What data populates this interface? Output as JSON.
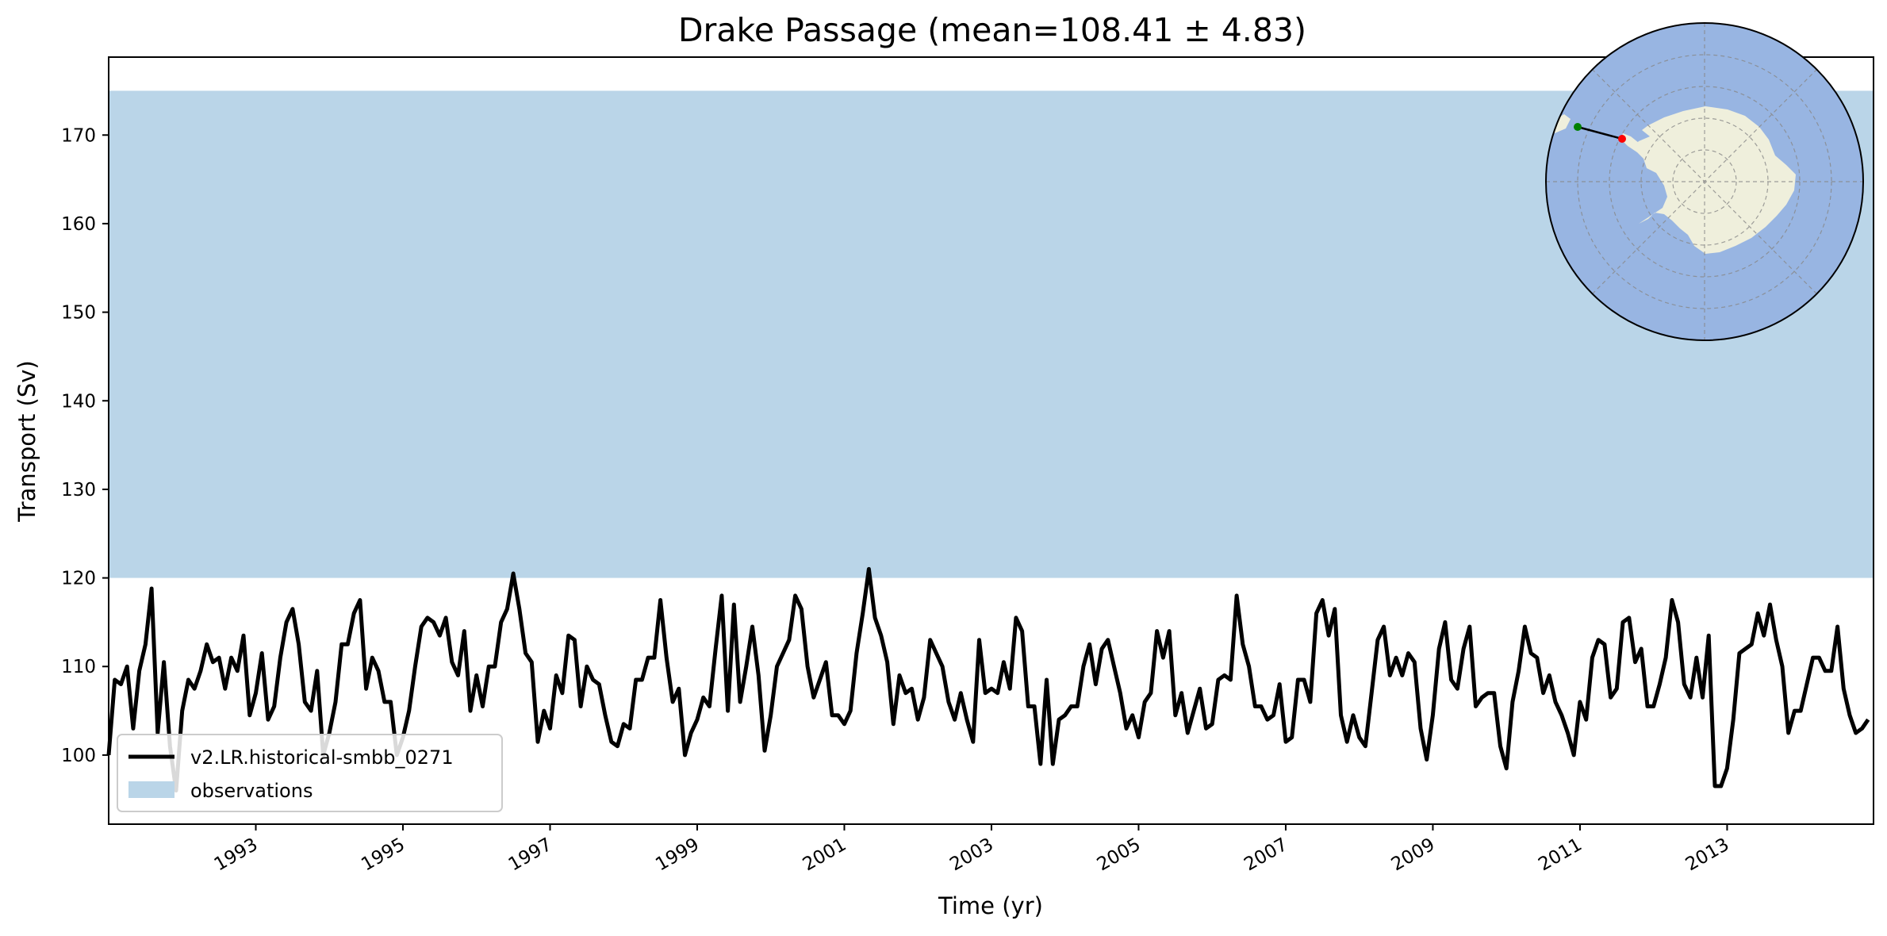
{
  "chart_data": {
    "type": "line",
    "title": "Drake Passage (mean=108.41 ± 4.83)",
    "xlabel": "Time (yr)",
    "ylabel": "Transport (Sv)",
    "xlim": [
      1991.0,
      2014.99
    ],
    "ylim": [
      92.2,
      178.8
    ],
    "x_ticks": [
      1993,
      1995,
      1997,
      1999,
      2001,
      2003,
      2005,
      2007,
      2009,
      2011,
      2013
    ],
    "x_tick_labels": [
      "1993",
      "1995",
      "1997",
      "1999",
      "2001",
      "2003",
      "2005",
      "2007",
      "2009",
      "2011",
      "2013"
    ],
    "y_ticks": [
      100,
      110,
      120,
      130,
      140,
      150,
      160,
      170
    ],
    "y_tick_labels": [
      "100",
      "110",
      "120",
      "130",
      "140",
      "150",
      "160",
      "170"
    ],
    "observations_band": {
      "name": "observations",
      "ymin": 120,
      "ymax": 175,
      "color": "#bad5e8"
    },
    "series": [
      {
        "name": "v2.LR.historical-smbb_0271",
        "color": "#000000",
        "x_start": 1991.0,
        "x_step": 0.0833333,
        "values": [
          100.0,
          108.5,
          108.0,
          110.0,
          103.0,
          109.5,
          112.5,
          118.8,
          102.5,
          110.5,
          101.0,
          96.0,
          105.0,
          108.5,
          107.5,
          109.5,
          112.5,
          110.5,
          111.0,
          107.5,
          111.0,
          109.5,
          113.5,
          104.5,
          107.0,
          111.5,
          104.0,
          105.5,
          111.0,
          115.0,
          116.5,
          112.5,
          106.0,
          105.0,
          109.5,
          100.0,
          102.5,
          106.0,
          112.5,
          112.5,
          116.0,
          117.5,
          107.5,
          111.0,
          109.5,
          106.0,
          106.0,
          100.0,
          102.0,
          105.0,
          110.0,
          114.5,
          115.5,
          115.0,
          113.5,
          115.5,
          110.5,
          109.0,
          114.0,
          105.0,
          109.0,
          105.5,
          110.0,
          110.0,
          115.0,
          116.5,
          120.5,
          116.5,
          111.5,
          110.5,
          101.5,
          105.0,
          103.0,
          109.0,
          107.0,
          113.5,
          113.0,
          105.5,
          110.0,
          108.5,
          108.0,
          104.5,
          101.5,
          101.0,
          103.5,
          103.0,
          108.5,
          108.5,
          111.0,
          111.0,
          117.5,
          111.0,
          106.0,
          107.5,
          100.0,
          102.5,
          104.0,
          106.5,
          105.5,
          112.0,
          118.0,
          105.0,
          117.0,
          106.0,
          110.0,
          114.5,
          109.0,
          100.5,
          104.5,
          110.0,
          111.5,
          113.0,
          118.0,
          116.5,
          110.0,
          106.5,
          108.5,
          110.5,
          104.5,
          104.5,
          103.5,
          105.0,
          111.5,
          116.0,
          121.0,
          115.5,
          113.5,
          110.5,
          103.5,
          109.0,
          107.0,
          107.5,
          104.0,
          106.5,
          113.0,
          111.5,
          110.0,
          106.0,
          104.0,
          107.0,
          104.0,
          101.5,
          113.0,
          107.0,
          107.5,
          107.0,
          110.5,
          107.5,
          115.5,
          114.0,
          105.5,
          105.5,
          99.0,
          108.5,
          99.0,
          104.0,
          104.5,
          105.5,
          105.5,
          110.0,
          112.5,
          108.0,
          112.0,
          113.0,
          110.0,
          107.0,
          103.0,
          104.5,
          102.0,
          106.0,
          107.0,
          114.0,
          111.0,
          114.0,
          104.5,
          107.0,
          102.5,
          105.0,
          107.5,
          103.0,
          103.5,
          108.5,
          109.0,
          108.5,
          118.0,
          112.5,
          110.0,
          105.5,
          105.5,
          104.0,
          104.5,
          108.0,
          101.5,
          102.0,
          108.5,
          108.5,
          106.0,
          116.0,
          117.5,
          113.5,
          116.5,
          104.5,
          101.5,
          104.5,
          102.0,
          101.0,
          107.0,
          113.0,
          114.5,
          109.0,
          111.0,
          109.0,
          111.5,
          110.5,
          103.0,
          99.5,
          104.5,
          112.0,
          115.0,
          108.5,
          107.5,
          112.0,
          114.5,
          105.5,
          106.5,
          107.0,
          107.0,
          101.0,
          98.5,
          106.0,
          109.5,
          114.5,
          111.5,
          111.0,
          107.0,
          109.0,
          106.0,
          104.5,
          102.5,
          100.0,
          106.0,
          104.0,
          111.0,
          113.0,
          112.5,
          106.5,
          107.5,
          115.0,
          115.5,
          110.5,
          112.0,
          105.5,
          105.5,
          108.0,
          111.0,
          117.5,
          115.0,
          108.0,
          106.5,
          111.0,
          106.5,
          113.5,
          96.5,
          96.5,
          98.5,
          104.0,
          111.5,
          112.0,
          112.5,
          116.0,
          113.5,
          117.0,
          113.0,
          110.0,
          102.5,
          105.0,
          105.0,
          108.0,
          111.0,
          111.0,
          109.5,
          109.5,
          114.5,
          107.5,
          104.5,
          102.5,
          103.0,
          104.0
        ]
      }
    ],
    "legend": {
      "position": "lower-left",
      "entries": [
        "v2.LR.historical-smbb_0271",
        "observations"
      ]
    },
    "inset_map": {
      "position": "top-right",
      "projection": "south-polar",
      "ocean_color": "#98b5e2",
      "land_color": "#efefdc",
      "section_line_color": "#000000",
      "start_marker_color": "#008000",
      "end_marker_color": "#ff0000"
    }
  }
}
